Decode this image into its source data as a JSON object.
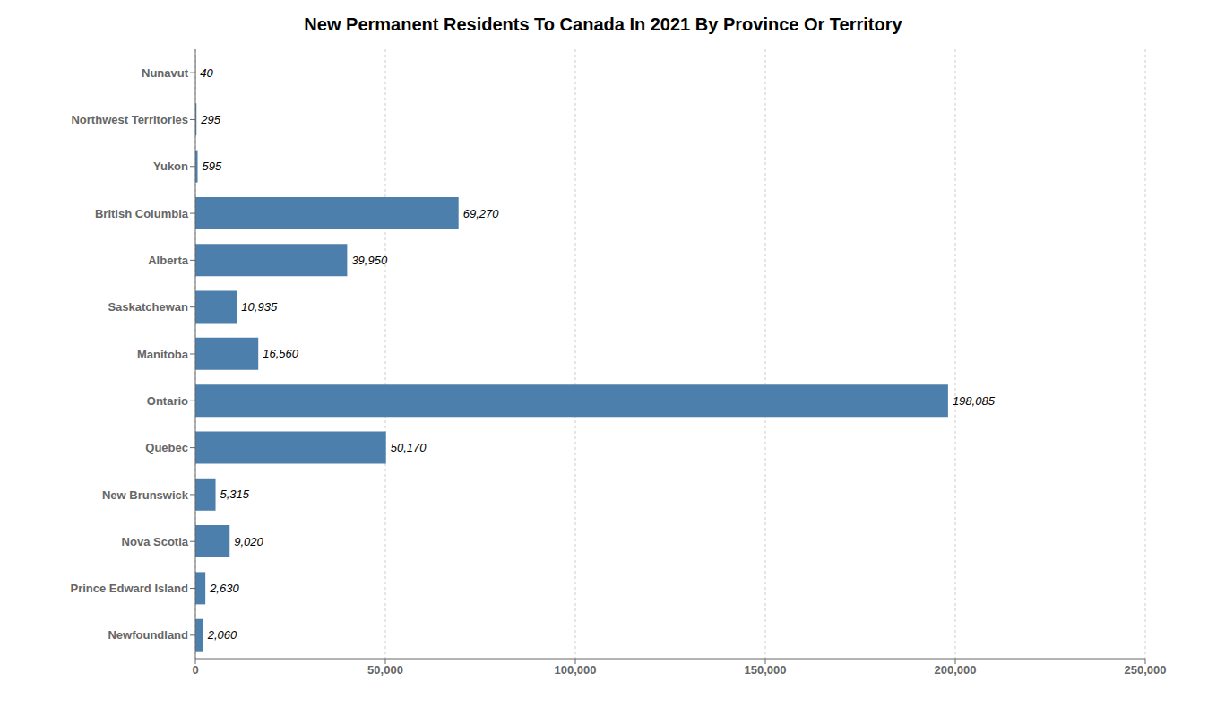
{
  "chart_data": {
    "type": "bar",
    "title": "New Permanent Residents To Canada In 2021 By Province Or Territory",
    "orientation": "horizontal",
    "categories": [
      "Newfoundland",
      "Prince Edward Island",
      "Nova Scotia",
      "New Brunswick",
      "Quebec",
      "Ontario",
      "Manitoba",
      "Saskatchewan",
      "Alberta",
      "British Columbia",
      "Yukon",
      "Northwest Territories",
      "Nunavut"
    ],
    "values": [
      2060,
      2630,
      9020,
      5315,
      50170,
      198085,
      16560,
      10935,
      39950,
      69270,
      595,
      295,
      40
    ],
    "data_labels": true,
    "value_labels": [
      "2,060",
      "2,630",
      "9,020",
      "5,315",
      "50,170",
      "198,085",
      "16,560",
      "10,935",
      "39,950",
      "69,270",
      "595",
      "295",
      "40"
    ],
    "color": "#4d7fac",
    "xlim": [
      0,
      250000
    ],
    "xticks": [
      0,
      {
        "value": 50000,
        "label": "50,000"
      },
      {
        "value": 100000,
        "label": "100,000"
      },
      {
        "value": 150000,
        "label": "150,000"
      },
      {
        "value": 200000,
        "label": "200,000"
      },
      {
        "value": 250000,
        "label": "250,000"
      }
    ],
    "grid": true
  }
}
